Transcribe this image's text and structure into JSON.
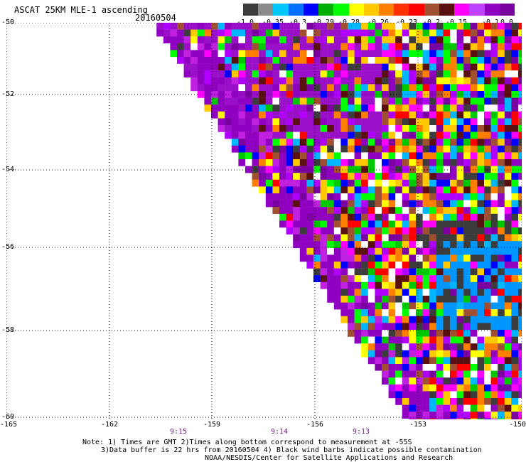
{
  "title": "ASCAT 25KM MLE-1 ascending",
  "date": "20160504",
  "legend": {
    "labels": [
      "-1.0",
      "-0.35",
      "-0.3",
      "-0.29",
      "-0.28",
      "-0.26",
      "-0.23",
      "-0.2",
      "-0.15",
      "-0.1",
      "0.0"
    ],
    "colors": [
      "#3c3c3c",
      "#8a8a8a",
      "#00c8ff",
      "#0070ff",
      "#0000ff",
      "#00b000",
      "#00ff00",
      "#ffff00",
      "#ffc800",
      "#ff8000",
      "#ff3000",
      "#ff0000",
      "#a05030",
      "#5a1010",
      "#ff00ff",
      "#c040ff",
      "#9000c0",
      "#7a00a0"
    ]
  },
  "axes": {
    "lat_ticks": [
      "-50",
      "-52",
      "-54",
      "-56",
      "-58",
      "-60"
    ],
    "lon_ticks": [
      "-165",
      "-162",
      "-159",
      "-156",
      "-153",
      "-150"
    ],
    "time_ticks": [
      "9:15",
      "9:14",
      "9:13"
    ]
  },
  "notes": {
    "line1": "Note: 1) Times are GMT 2)Times along bottom correspond to measurement at -55S",
    "line2": "3)Data buffer is 22 hrs from 20160504 4) Black wind barbs indicate possible contamination",
    "line3": "NOAA/NESDIS/Center for Satellite Applications and Research"
  },
  "map_data": {
    "lon_range": [
      -165,
      -150
    ],
    "lat_range": [
      -60,
      -50
    ],
    "swath_edge": [
      [
        -160.8,
        -50
      ],
      [
        -154.2,
        -60
      ]
    ],
    "palette_gradient": "purple near swath edge, mixed toward center, blue/gray patch near -151 lon, -56 lat"
  }
}
